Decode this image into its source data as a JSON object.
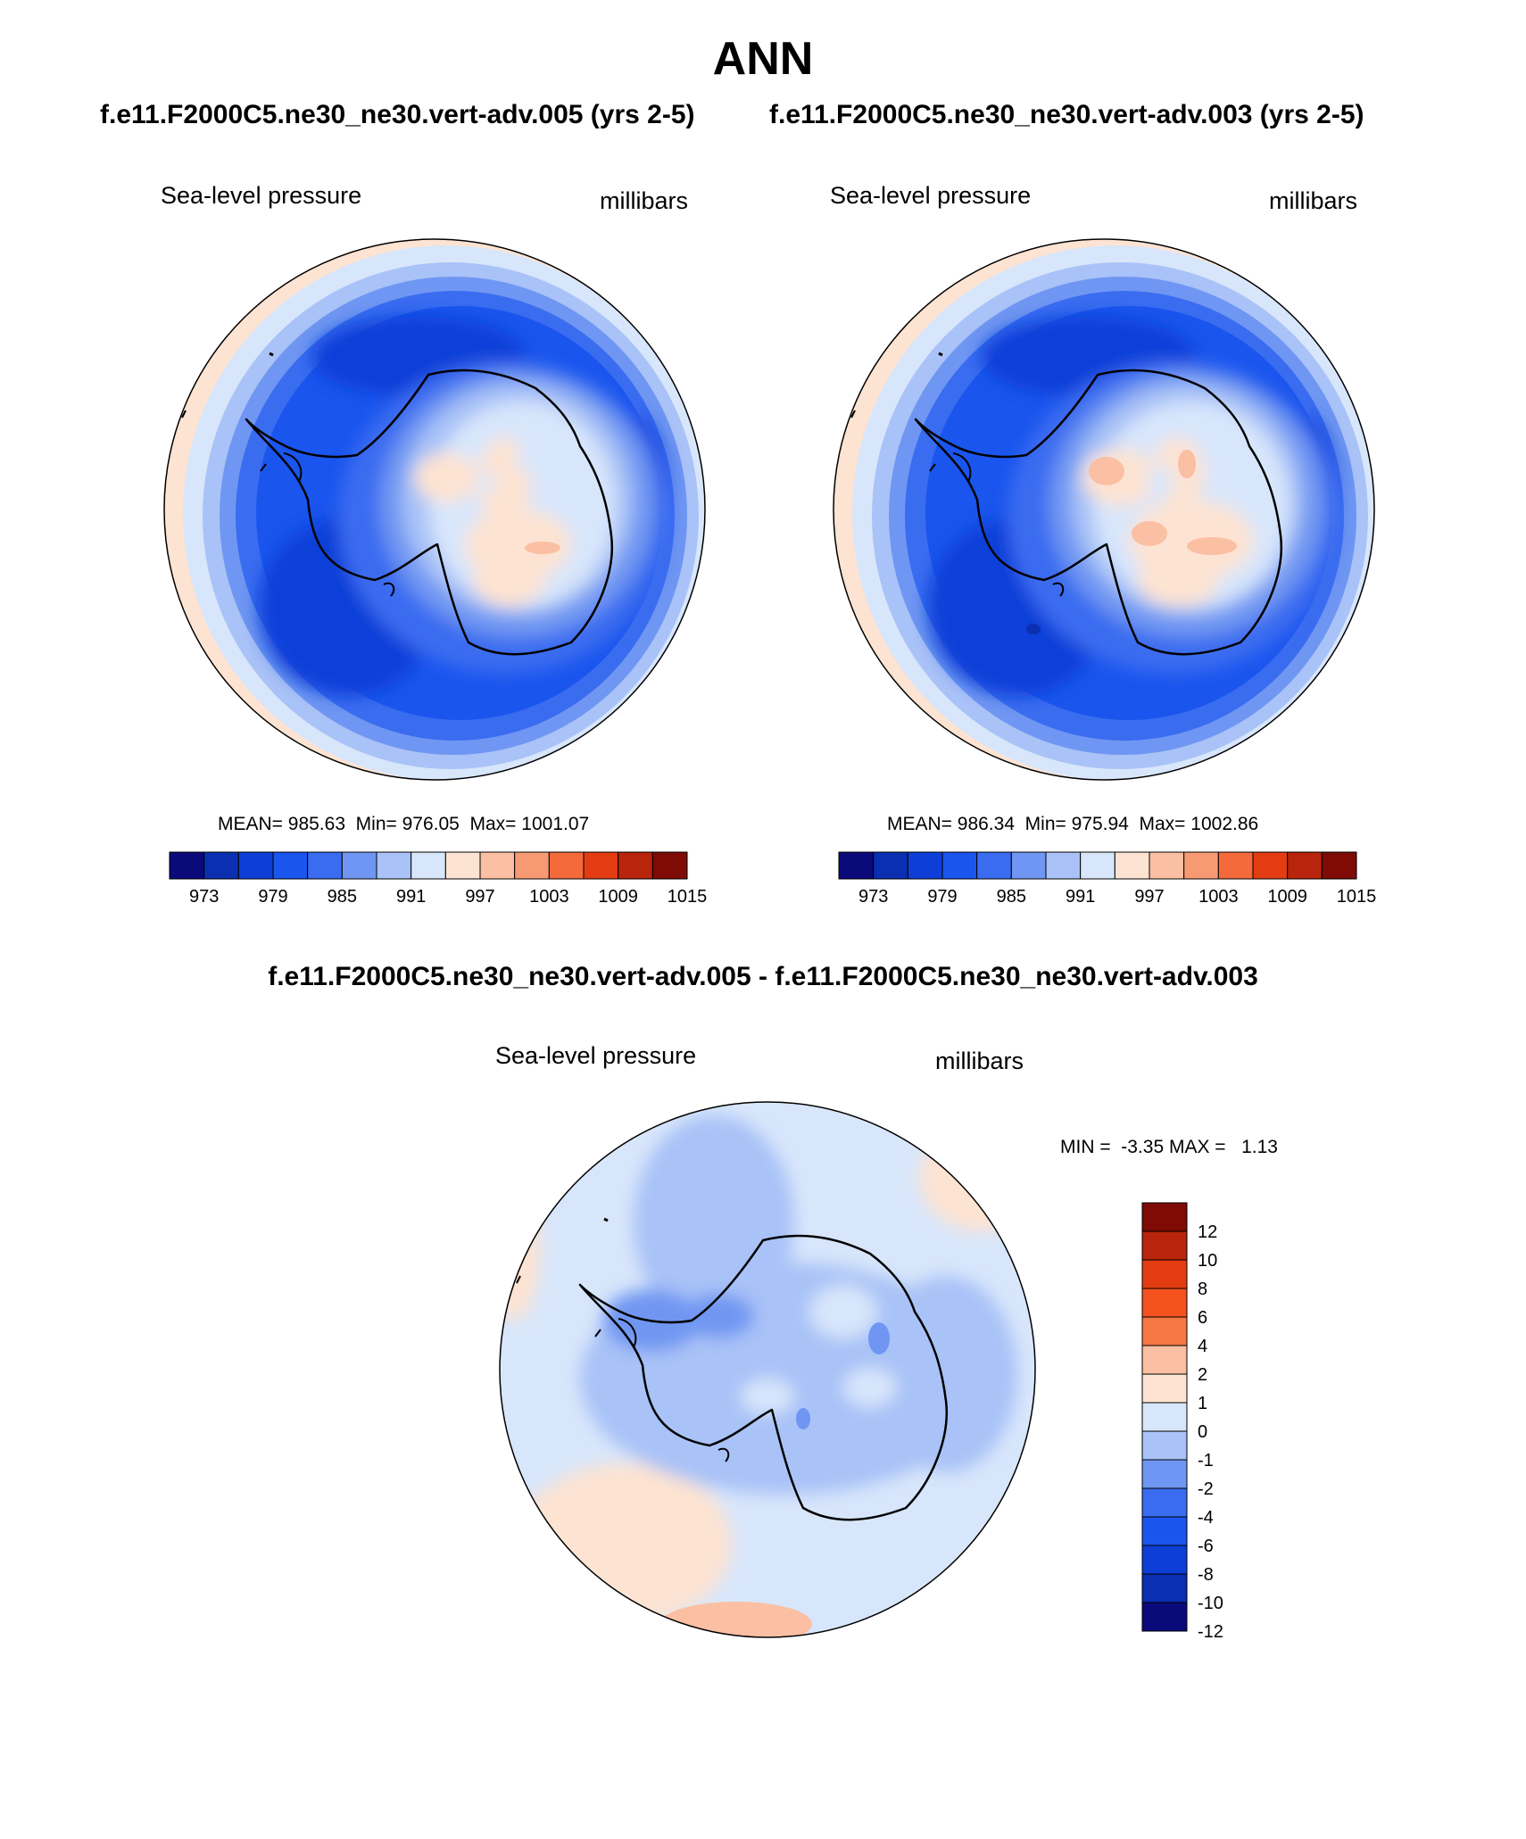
{
  "header": {
    "title": "ANN",
    "left_case": "f.e11.F2000C5.ne30_ne30.vert-adv.005 (yrs 2-5)",
    "right_case": "f.e11.F2000C5.ne30_ne30.vert-adv.003 (yrs 2-5)",
    "diff_title": "f.e11.F2000C5.ne30_ne30.vert-adv.005 - f.e11.F2000C5.ne30_ne30.vert-adv.003"
  },
  "chart_data": [
    {
      "type": "heatmap",
      "projection": "south polar stereographic",
      "field": "Sea-level pressure",
      "units": "millibars",
      "stats": "MEAN= 985.63  Min= 976.05  Max= 1001.07",
      "mean": 985.63,
      "min": 976.05,
      "max": 1001.07,
      "colorbar": {
        "orientation": "horizontal",
        "labels": [
          "973",
          "979",
          "985",
          "991",
          "997",
          "1003",
          "1009",
          "1015"
        ],
        "levels": [
          973,
          976,
          979,
          982,
          985,
          988,
          991,
          994,
          997,
          1000,
          1003,
          1006,
          1009,
          1012,
          1015
        ],
        "colors": [
          "#0a0a7a",
          "#0a2fb0",
          "#0d3fd8",
          "#1a55ee",
          "#3a6cf0",
          "#6f96f2",
          "#a9c2f7",
          "#d8e6fb",
          "#fde3d2",
          "#fbbfa3",
          "#f79a74",
          "#f46a3b",
          "#e33c12",
          "#b8240c",
          "#7e0b06"
        ]
      }
    },
    {
      "type": "heatmap",
      "projection": "south polar stereographic",
      "field": "Sea-level pressure",
      "units": "millibars",
      "stats": "MEAN= 986.34  Min= 975.94  Max= 1002.86",
      "mean": 986.34,
      "min": 975.94,
      "max": 1002.86,
      "colorbar": {
        "orientation": "horizontal",
        "labels": [
          "973",
          "979",
          "985",
          "991",
          "997",
          "1003",
          "1009",
          "1015"
        ],
        "levels": [
          973,
          976,
          979,
          982,
          985,
          988,
          991,
          994,
          997,
          1000,
          1003,
          1006,
          1009,
          1012,
          1015
        ],
        "colors": [
          "#0a0a7a",
          "#0a2fb0",
          "#0d3fd8",
          "#1a55ee",
          "#3a6cf0",
          "#6f96f2",
          "#a9c2f7",
          "#d8e6fb",
          "#fde3d2",
          "#fbbfa3",
          "#f79a74",
          "#f46a3b",
          "#e33c12",
          "#b8240c",
          "#7e0b06"
        ]
      }
    },
    {
      "type": "heatmap",
      "projection": "south polar stereographic",
      "field": "Sea-level pressure",
      "units": "millibars",
      "stats": "MIN =  -3.35 MAX =   1.13",
      "min": -3.35,
      "max": 1.13,
      "colorbar": {
        "orientation": "vertical",
        "labels": [
          "12",
          "10",
          "8",
          "6",
          "4",
          "2",
          "1",
          "0",
          "-1",
          "-2",
          "-4",
          "-6",
          "-8",
          "-10",
          "-12"
        ],
        "levels": [
          12,
          10,
          8,
          6,
          4,
          2,
          1,
          0,
          -1,
          -2,
          -4,
          -6,
          -8,
          -10,
          -12
        ],
        "colors": [
          "#7e0b06",
          "#b8240c",
          "#e33c12",
          "#f4531f",
          "#f77844",
          "#fbbfa3",
          "#fde3d2",
          "#d8e6fb",
          "#a9c2f7",
          "#6f96f2",
          "#3a6cf0",
          "#1a55ee",
          "#0d3fd8",
          "#0a2fb0",
          "#0a0a7a"
        ]
      }
    }
  ]
}
